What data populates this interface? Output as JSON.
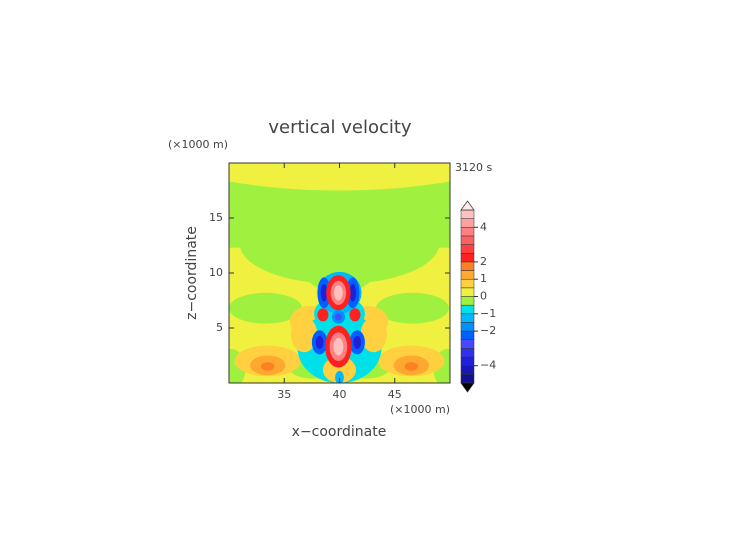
{
  "chart_data": {
    "type": "contour",
    "title": "vertical velocity",
    "x_label": "x−coordinate",
    "y_label": "z−coordinate",
    "x_unit": "(×1000 m)",
    "y_unit": "(×1000 m)",
    "time_label": "3120 s",
    "xlim": [
      30,
      50
    ],
    "xticks": [
      35,
      40,
      45
    ],
    "ylim": [
      0,
      20
    ],
    "yticks": [
      5,
      10,
      15
    ],
    "colorbar": {
      "lim": [
        -5,
        5
      ],
      "levels": [
        -5,
        -4.5,
        -4,
        -3.5,
        -3,
        -2.5,
        -2,
        -1.5,
        -1,
        -0.5,
        0,
        0.5,
        1,
        1.5,
        2,
        2.5,
        3,
        3.5,
        4,
        4.5,
        5
      ],
      "colors": [
        "#101090",
        "#1818b8",
        "#2020d8",
        "#3030f0",
        "#4848ff",
        "#0060ff",
        "#0090ff",
        "#00b8ff",
        "#00e0e8",
        "#a0f040",
        "#f0f040",
        "#ffd040",
        "#ffa830",
        "#ff8020",
        "#ff2020",
        "#ff4040",
        "#ff6060",
        "#ff8080",
        "#ffa0a0",
        "#ffc0c0"
      ],
      "ticks": [
        {
          "value": -4,
          "label": "−4"
        },
        {
          "value": -2,
          "label": "−2"
        },
        {
          "value": -1,
          "label": "−1"
        },
        0,
        1,
        2,
        4
      ]
    }
  }
}
